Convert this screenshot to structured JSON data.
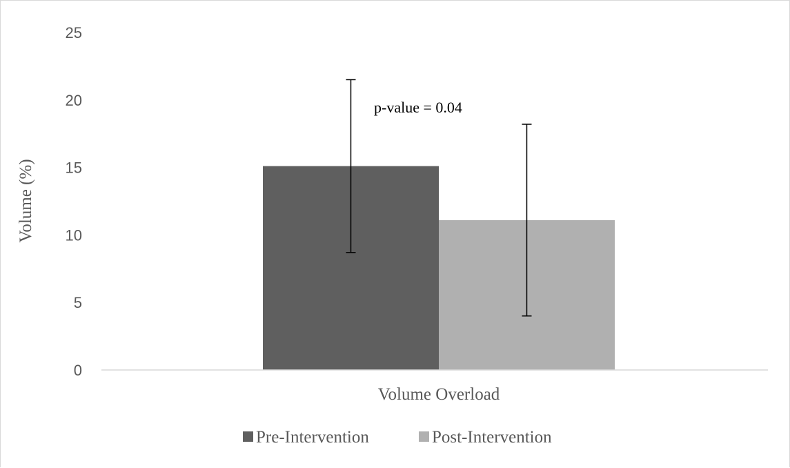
{
  "chart_data": {
    "type": "bar",
    "categories": [
      "Volume Overload"
    ],
    "series": [
      {
        "name": "Pre-Intervention",
        "values": [
          15.1
        ],
        "error_low": [
          8.7
        ],
        "error_high": [
          21.5
        ],
        "color": "#5f5f5f"
      },
      {
        "name": "Post-Intervention",
        "values": [
          11.1
        ],
        "error_low": [
          4.0
        ],
        "error_high": [
          18.2
        ],
        "color": "#b0b0b0"
      }
    ],
    "title": "",
    "xlabel": "",
    "ylabel": "Volume (%)",
    "ylim": [
      0,
      25
    ],
    "yticks": [
      "0",
      "5",
      "10",
      "15",
      "20",
      "25"
    ],
    "grid": false,
    "legend": "bottom",
    "annotations": [
      {
        "text": "p-value = 0.04"
      }
    ]
  }
}
